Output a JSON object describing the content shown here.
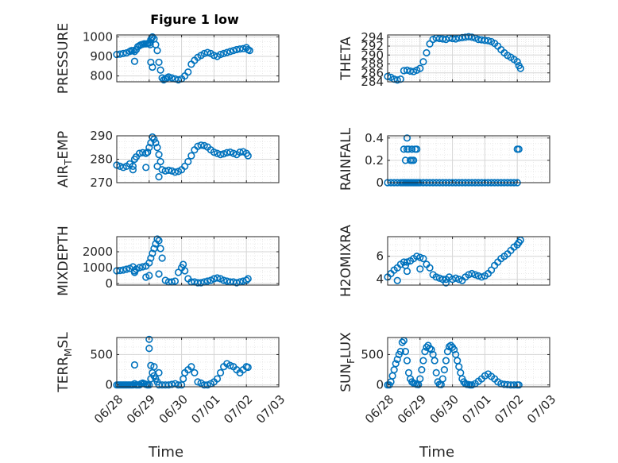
{
  "figure": {
    "title": "Figure 1 low"
  },
  "colors": {
    "marker": "#0072BD",
    "axis": "#262626",
    "grid": "#d6d6d6"
  },
  "chart_data": [
    {
      "id": "pressure",
      "type": "scatter",
      "ylabel": "PRESSURE",
      "ylabel_sub": "",
      "ylim": [
        770,
        1010
      ],
      "yticks": [
        800,
        900,
        1000
      ],
      "ytick_labels": [
        "800",
        "900",
        "1000"
      ],
      "xlim": [
        0,
        5
      ],
      "xticks": [
        0,
        1,
        2,
        3,
        4,
        5
      ],
      "xtick_labels": [
        "06/28",
        "06/29",
        "06/30",
        "07/01",
        "07/02",
        "07/03"
      ],
      "xlabel": "",
      "x": [
        0,
        0.1,
        0.2,
        0.3,
        0.4,
        0.45,
        0.5,
        0.55,
        0.6,
        0.65,
        0.7,
        0.75,
        0.8,
        0.85,
        0.9,
        0.95,
        1,
        1.03,
        1.05,
        1.08,
        1.1,
        1.15,
        1.2,
        1.25,
        1.3,
        1.35,
        1.4,
        1.45,
        1.5,
        1.55,
        1.6,
        1.7,
        1.8,
        1.9,
        2,
        2.1,
        2.2,
        2.3,
        2.4,
        2.5,
        2.6,
        2.7,
        2.8,
        2.9,
        3,
        3.1,
        3.2,
        3.3,
        3.4,
        3.5,
        3.6,
        3.7,
        3.8,
        3.9,
        4,
        4.05,
        4.1,
        0.55,
        1.05,
        1.1
      ],
      "y": [
        910,
        912,
        915,
        918,
        925,
        930,
        930,
        925,
        935,
        950,
        955,
        960,
        962,
        965,
        964,
        966,
        968,
        960,
        985,
        995,
        1000,
        990,
        960,
        930,
        870,
        830,
        790,
        780,
        785,
        790,
        795,
        790,
        785,
        780,
        785,
        800,
        820,
        860,
        880,
        895,
        905,
        915,
        920,
        915,
        905,
        900,
        910,
        915,
        920,
        925,
        930,
        935,
        938,
        940,
        945,
        935,
        930,
        875,
        870,
        845
      ]
    },
    {
      "id": "theta",
      "type": "scatter",
      "ylabel": "THETA",
      "ylabel_sub": "",
      "ylim": [
        284,
        294.5
      ],
      "yticks": [
        284,
        286,
        288,
        290,
        292,
        294
      ],
      "ytick_labels": [
        "284",
        "286",
        "288",
        "290",
        "292",
        "294"
      ],
      "xlim": [
        0,
        5
      ],
      "xticks": [
        0,
        1,
        2,
        3,
        4,
        5
      ],
      "xtick_labels": [
        "06/28",
        "06/29",
        "06/30",
        "07/01",
        "07/02",
        "07/03"
      ],
      "xlabel": "",
      "x": [
        0,
        0.1,
        0.2,
        0.3,
        0.4,
        0.5,
        0.6,
        0.7,
        0.8,
        0.9,
        1,
        1.1,
        1.2,
        1.3,
        1.4,
        1.5,
        1.6,
        1.7,
        1.8,
        1.9,
        2,
        2.1,
        2.2,
        2.3,
        2.4,
        2.5,
        2.6,
        2.7,
        2.8,
        2.9,
        3,
        3.1,
        3.2,
        3.3,
        3.4,
        3.5,
        3.6,
        3.7,
        3.8,
        3.9,
        4,
        4.05,
        4.1
      ],
      "y": [
        285.2,
        285.0,
        284.6,
        284.4,
        284.6,
        286.5,
        286.6,
        286.4,
        286.3,
        286.6,
        287.0,
        288.5,
        290.5,
        292.5,
        293.5,
        293.8,
        293.7,
        293.6,
        293.5,
        293.8,
        293.7,
        293.6,
        293.8,
        293.9,
        294.0,
        294.1,
        294.0,
        293.8,
        293.5,
        293.4,
        293.3,
        293.2,
        293.0,
        292.6,
        292.0,
        291.2,
        290.5,
        289.9,
        289.5,
        289.0,
        288.5,
        287.6,
        287.0
      ]
    },
    {
      "id": "air_temp",
      "type": "scatter",
      "ylabel": "AIR",
      "ylabel_sub": "T",
      "ylabel_after": "EMP",
      "ylim": [
        270,
        290
      ],
      "yticks": [
        270,
        280,
        290
      ],
      "ytick_labels": [
        "270",
        "280",
        "290"
      ],
      "xlim": [
        0,
        5
      ],
      "xticks": [
        0,
        1,
        2,
        3,
        4,
        5
      ],
      "xtick_labels": [
        "06/28",
        "06/29",
        "06/30",
        "07/01",
        "07/02",
        "07/03"
      ],
      "xlabel": "",
      "x": [
        0,
        0.1,
        0.2,
        0.3,
        0.4,
        0.5,
        0.55,
        0.6,
        0.7,
        0.8,
        0.9,
        0.95,
        1,
        1.05,
        1.1,
        1.15,
        1.2,
        1.25,
        1.3,
        1.35,
        1.4,
        1.5,
        1.6,
        1.7,
        1.8,
        1.9,
        2,
        2.1,
        2.2,
        2.3,
        2.4,
        2.5,
        2.6,
        2.7,
        2.8,
        2.9,
        3,
        3.1,
        3.2,
        3.3,
        3.4,
        3.5,
        3.6,
        3.7,
        3.8,
        3.9,
        4,
        4.05,
        0.5,
        0.9,
        1.25,
        1.3
      ],
      "y": [
        277.5,
        277.0,
        276.5,
        277.0,
        278.0,
        277.0,
        280.0,
        281.0,
        282.5,
        282.8,
        282.5,
        283.0,
        285.0,
        287.0,
        289.5,
        288.5,
        287.0,
        285.0,
        282.0,
        279.0,
        275.5,
        275.0,
        275.3,
        275.0,
        274.5,
        274.8,
        275.5,
        277.0,
        279.0,
        281.5,
        284.0,
        285.5,
        286.0,
        285.8,
        285.2,
        284.0,
        283.0,
        282.5,
        282.0,
        282.3,
        282.8,
        283.0,
        282.5,
        282.0,
        283.0,
        283.2,
        282.5,
        281.5,
        275.5,
        276.5,
        277.0,
        272.5
      ]
    },
    {
      "id": "rainfall",
      "type": "scatter",
      "ylabel": "RAINFALL",
      "ylabel_sub": "",
      "ylim": [
        0,
        0.42
      ],
      "yticks": [
        0,
        0.2,
        0.4
      ],
      "ytick_labels": [
        "0",
        "0.2",
        "0.4"
      ],
      "xlim": [
        0,
        5
      ],
      "xticks": [
        0,
        1,
        2,
        3,
        4,
        5
      ],
      "xtick_labels": [
        "06/28",
        "06/29",
        "06/30",
        "07/01",
        "07/02",
        "07/03"
      ],
      "xlabel": "",
      "x": [
        0,
        0.1,
        0.2,
        0.3,
        0.4,
        0.45,
        0.5,
        0.55,
        0.6,
        0.65,
        0.7,
        0.75,
        0.8,
        0.85,
        0.9,
        0.95,
        1,
        1.1,
        1.2,
        1.3,
        1.4,
        1.5,
        1.6,
        1.7,
        1.8,
        1.9,
        2,
        2.1,
        2.2,
        2.3,
        2.4,
        2.5,
        2.6,
        2.7,
        2.8,
        2.9,
        3,
        3.1,
        3.2,
        3.3,
        3.4,
        3.5,
        3.6,
        3.7,
        3.8,
        3.9,
        4,
        0.5,
        0.55,
        0.6,
        0.6,
        0.65,
        0.7,
        0.75,
        0.75,
        0.8,
        0.85,
        0.9,
        4.0,
        4.05
      ],
      "y": [
        0,
        0,
        0,
        0,
        0,
        0,
        0,
        0,
        0,
        0,
        0,
        0,
        0,
        0,
        0,
        0,
        0,
        0,
        0,
        0,
        0,
        0,
        0,
        0,
        0,
        0,
        0,
        0,
        0,
        0,
        0,
        0,
        0,
        0,
        0,
        0,
        0,
        0,
        0,
        0,
        0,
        0,
        0,
        0,
        0,
        0,
        0,
        0.3,
        0.2,
        0.3,
        0.4,
        0.3,
        0.2,
        0.3,
        0.2,
        0.2,
        0.3,
        0.3,
        0.3,
        0.3
      ]
    },
    {
      "id": "mixdepth",
      "type": "scatter",
      "ylabel": "MIXDEPTH",
      "ylabel_sub": "",
      "ylim": [
        -100,
        2950
      ],
      "yticks": [
        0,
        1000,
        2000
      ],
      "ytick_labels": [
        "0",
        "1000",
        "2000"
      ],
      "xlim": [
        0,
        5
      ],
      "xticks": [
        0,
        1,
        2,
        3,
        4,
        5
      ],
      "xtick_labels": [
        "06/28",
        "06/29",
        "06/30",
        "07/01",
        "07/02",
        "07/03"
      ],
      "xlabel": "",
      "x": [
        0,
        0.1,
        0.2,
        0.3,
        0.4,
        0.5,
        0.55,
        0.6,
        0.7,
        0.8,
        0.9,
        1,
        1.05,
        1.1,
        1.15,
        1.2,
        1.25,
        1.3,
        1.35,
        1.4,
        1.5,
        1.6,
        1.7,
        1.8,
        1.9,
        2,
        2.05,
        2.1,
        2.2,
        2.3,
        2.4,
        2.5,
        2.6,
        2.7,
        2.8,
        2.9,
        3,
        3.1,
        3.2,
        3.3,
        3.4,
        3.5,
        3.6,
        3.7,
        3.8,
        3.9,
        4,
        4.05,
        0.55,
        0.9,
        1.0,
        1.3
      ],
      "y": [
        800,
        820,
        850,
        900,
        950,
        1050,
        800,
        900,
        1000,
        1050,
        1100,
        1300,
        1600,
        1900,
        2200,
        2500,
        2800,
        2700,
        2200,
        1600,
        200,
        100,
        100,
        150,
        700,
        1000,
        1200,
        800,
        300,
        100,
        100,
        50,
        50,
        100,
        150,
        200,
        300,
        350,
        300,
        200,
        150,
        100,
        100,
        50,
        100,
        150,
        200,
        300,
        700,
        400,
        500,
        600
      ]
    },
    {
      "id": "h2omixra",
      "type": "scatter",
      "ylabel": "H2OMIXRA",
      "ylabel_sub": "",
      "ylim": [
        3.5,
        7.7
      ],
      "yticks": [
        4,
        6
      ],
      "ytick_labels": [
        "4",
        "6"
      ],
      "xlim": [
        0,
        5
      ],
      "xticks": [
        0,
        1,
        2,
        3,
        4,
        5
      ],
      "xtick_labels": [
        "06/28",
        "06/29",
        "06/30",
        "07/01",
        "07/02",
        "07/03"
      ],
      "xlabel": "",
      "x": [
        0,
        0.1,
        0.2,
        0.3,
        0.4,
        0.5,
        0.55,
        0.6,
        0.7,
        0.8,
        0.9,
        1,
        1.1,
        1.2,
        1.3,
        1.4,
        1.5,
        1.6,
        1.7,
        1.8,
        1.9,
        2,
        2.1,
        2.2,
        2.3,
        2.4,
        2.5,
        2.6,
        2.7,
        2.8,
        2.9,
        3,
        3.1,
        3.2,
        3.3,
        3.4,
        3.5,
        3.6,
        3.7,
        3.8,
        3.9,
        4,
        4.05,
        4.1,
        0.3,
        0.6,
        1.0,
        1.8
      ],
      "y": [
        4.2,
        4.5,
        4.8,
        5.0,
        5.3,
        5.5,
        5.2,
        5.5,
        5.6,
        5.8,
        6.0,
        5.9,
        5.8,
        5.3,
        5.0,
        4.4,
        4.2,
        4.1,
        4.0,
        4.0,
        4.2,
        4.0,
        4.1,
        4.0,
        3.9,
        4.2,
        4.4,
        4.5,
        4.4,
        4.3,
        4.2,
        4.3,
        4.5,
        4.8,
        5.2,
        5.5,
        5.8,
        6.0,
        6.2,
        6.5,
        6.8,
        7.0,
        7.2,
        7.4,
        3.9,
        4.7,
        4.9,
        3.7
      ]
    },
    {
      "id": "terr_msl",
      "type": "scatter",
      "ylabel": "TERR",
      "ylabel_sub": "M",
      "ylabel_after": "SL",
      "ylim": [
        -30,
        780
      ],
      "yticks": [
        0,
        500
      ],
      "ytick_labels": [
        "0",
        "500"
      ],
      "xlim": [
        0,
        5
      ],
      "xticks": [
        0,
        1,
        2,
        3,
        4,
        5
      ],
      "xtick_labels": [
        "06/28",
        "06/29",
        "06/30",
        "07/01",
        "07/02",
        "07/03"
      ],
      "xlabel": "Time",
      "x": [
        0,
        0.05,
        0.1,
        0.15,
        0.2,
        0.25,
        0.3,
        0.35,
        0.4,
        0.45,
        0.5,
        0.55,
        0.6,
        0.65,
        0.7,
        0.75,
        0.8,
        0.85,
        0.9,
        0.95,
        1,
        1.05,
        1.1,
        1.15,
        1.2,
        1.25,
        1.3,
        1.4,
        1.5,
        1.6,
        1.7,
        1.8,
        1.9,
        2,
        2.05,
        2.1,
        2.2,
        2.3,
        2.4,
        2.5,
        2.6,
        2.7,
        2.8,
        2.9,
        3,
        3.1,
        3.2,
        3.3,
        3.4,
        3.5,
        3.6,
        3.7,
        3.8,
        3.9,
        4,
        4.05,
        0.55,
        1.0,
        1.0,
        1.3,
        1.05,
        1.15
      ],
      "y": [
        0,
        0,
        0,
        0,
        0,
        0,
        0,
        0,
        0,
        0,
        0,
        20,
        0,
        0,
        0,
        20,
        30,
        20,
        10,
        0,
        0,
        100,
        200,
        150,
        100,
        50,
        0,
        0,
        0,
        0,
        10,
        20,
        0,
        0,
        100,
        200,
        250,
        300,
        200,
        50,
        30,
        0,
        0,
        20,
        50,
        100,
        200,
        300,
        350,
        320,
        300,
        250,
        200,
        250,
        300,
        290,
        330,
        750,
        600,
        200,
        320,
        300
      ]
    },
    {
      "id": "sun_flux",
      "type": "scatter",
      "ylabel": "SUN",
      "ylabel_sub": "F",
      "ylabel_after": "LUX",
      "ylim": [
        -30,
        780
      ],
      "yticks": [
        0,
        500
      ],
      "ytick_labels": [
        "0",
        "500"
      ],
      "xlim": [
        0,
        5
      ],
      "xticks": [
        0,
        1,
        2,
        3,
        4,
        5
      ],
      "xtick_labels": [
        "06/28",
        "06/29",
        "06/30",
        "07/01",
        "07/02",
        "07/03"
      ],
      "xlabel": "Time",
      "x": [
        0,
        0.05,
        0.1,
        0.15,
        0.2,
        0.25,
        0.3,
        0.35,
        0.4,
        0.45,
        0.5,
        0.55,
        0.6,
        0.65,
        0.7,
        0.75,
        0.8,
        0.85,
        0.9,
        0.95,
        1,
        1.05,
        1.1,
        1.15,
        1.2,
        1.25,
        1.3,
        1.35,
        1.4,
        1.45,
        1.5,
        1.55,
        1.6,
        1.65,
        1.7,
        1.75,
        1.8,
        1.85,
        1.9,
        1.95,
        2,
        2.05,
        2.1,
        2.15,
        2.2,
        2.25,
        2.3,
        2.35,
        2.4,
        2.45,
        2.5,
        2.55,
        2.6,
        2.7,
        2.8,
        2.9,
        3,
        3.1,
        3.2,
        3.3,
        3.4,
        3.5,
        3.6,
        3.7,
        3.8,
        3.9,
        4,
        4.05
      ],
      "y": [
        0,
        0,
        50,
        150,
        250,
        350,
        420,
        500,
        550,
        700,
        730,
        550,
        400,
        200,
        100,
        50,
        30,
        20,
        10,
        5,
        100,
        250,
        400,
        550,
        620,
        650,
        600,
        580,
        500,
        400,
        200,
        50,
        10,
        5,
        100,
        250,
        400,
        550,
        630,
        650,
        620,
        580,
        500,
        400,
        300,
        200,
        100,
        50,
        20,
        10,
        5,
        0,
        0,
        20,
        60,
        100,
        150,
        180,
        140,
        100,
        50,
        20,
        10,
        5,
        0,
        0,
        0,
        0
      ]
    }
  ]
}
